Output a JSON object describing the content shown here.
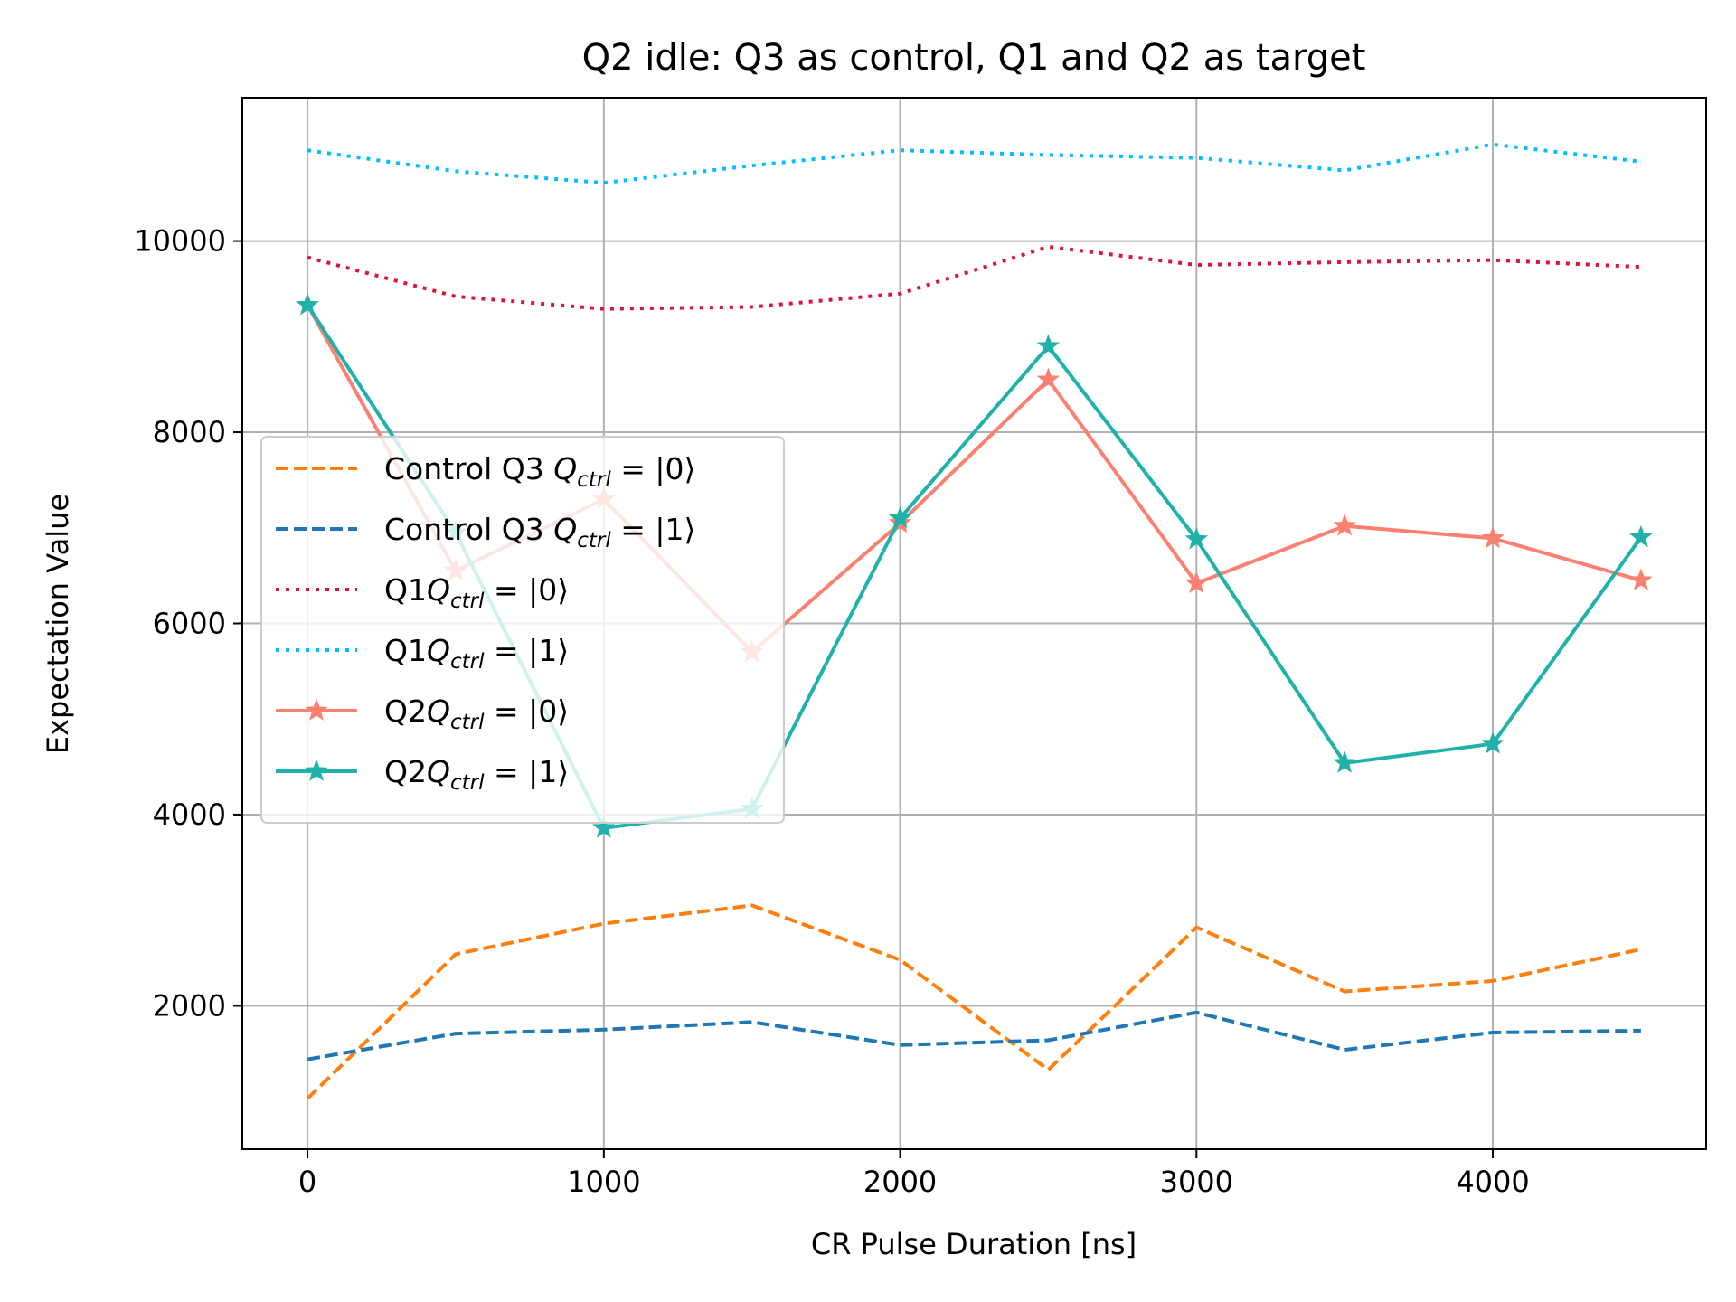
{
  "chart_data": {
    "type": "line",
    "title": "Q2 idle: Q3 as control, Q1 and Q2 as target",
    "xlabel": "CR Pulse Duration [ns]",
    "ylabel": "Expectation Value",
    "xlim": [
      -220,
      4720
    ],
    "ylim": [
      500,
      11500
    ],
    "xticks": [
      0,
      1000,
      2000,
      3000,
      4000
    ],
    "yticks": [
      2000,
      4000,
      6000,
      8000,
      10000
    ],
    "grid": true,
    "legend_position": "center-left",
    "x": [
      0,
      500,
      1000,
      1500,
      2000,
      2500,
      3000,
      3500,
      4000,
      4500
    ],
    "series": [
      {
        "name": "Control Q3 Q_ctrl = |0⟩",
        "legend_prefix": "Control Q3 ",
        "color": "#ff7f0e",
        "style": "dashed",
        "marker": "none",
        "values": [
          1030,
          2540,
          2860,
          3050,
          2480,
          1330,
          2820,
          2150,
          2260,
          2590
        ]
      },
      {
        "name": "Control Q3 Q_ctrl = |1⟩",
        "legend_prefix": "Control Q3 ",
        "color": "#1f77b4",
        "style": "dashed",
        "marker": "none",
        "values": [
          1440,
          1710,
          1750,
          1830,
          1590,
          1640,
          1930,
          1540,
          1720,
          1740
        ]
      },
      {
        "name": "Q1Q_ctrl = |0⟩",
        "legend_prefix": "Q1",
        "color": "#dc143c",
        "style": "dotted",
        "marker": "none",
        "values": [
          9830,
          9420,
          9290,
          9310,
          9450,
          9940,
          9750,
          9780,
          9800,
          9730
        ]
      },
      {
        "name": "Q1Q_ctrl = |1⟩",
        "legend_prefix": "Q1",
        "color": "#00bfff",
        "style": "dotted",
        "marker": "none",
        "values": [
          10950,
          10730,
          10610,
          10790,
          10950,
          10900,
          10870,
          10740,
          11010,
          10830
        ]
      },
      {
        "name": "Q2Q_ctrl = |0⟩",
        "legend_prefix": "Q2",
        "color": "#fa8072",
        "style": "solid",
        "marker": "star",
        "values": [
          9330,
          6550,
          7300,
          5700,
          7050,
          8550,
          6420,
          7020,
          6890,
          6450
        ]
      },
      {
        "name": "Q2Q_ctrl = |1⟩",
        "legend_prefix": "Q2",
        "color": "#20b2aa",
        "style": "solid",
        "marker": "star",
        "values": [
          9330,
          6950,
          3860,
          4060,
          7100,
          8900,
          6880,
          4540,
          4740,
          6900
        ]
      }
    ],
    "legend_states": [
      "0",
      "1",
      "0",
      "1",
      "0",
      "1"
    ]
  }
}
